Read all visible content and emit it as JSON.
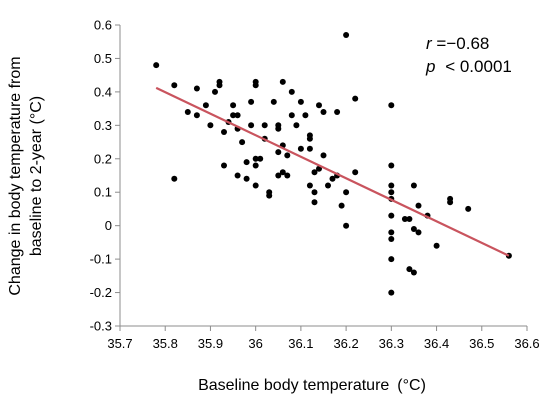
{
  "chart_data": {
    "type": "scatter",
    "title": "",
    "xlabel": "Baseline body temperature (°C)",
    "ylabel_lines": [
      "Change in body temperature from",
      "baseline to 2-year (°C)"
    ],
    "xlim": [
      35.7,
      36.6
    ],
    "ylim": [
      -0.3,
      0.6
    ],
    "xticks": [
      "35.7",
      "35.8",
      "35.9",
      "36",
      "36.1",
      "36.2",
      "36.3",
      "36.4",
      "36.5",
      "36.6"
    ],
    "yticks": [
      "0.6",
      "0.5",
      "0.4",
      "0.3",
      "0.2",
      "0.1",
      "0",
      "-0.1",
      "-0.2",
      "-0.3"
    ],
    "grid": false,
    "colors": {
      "points": "#000000",
      "fit_line": "#c9545e",
      "axis": "#8c8c8c"
    },
    "annotation": {
      "r_var": "r",
      "r_value": "=−0.68",
      "p_var": "p",
      "p_value": "< 0.0001"
    },
    "fit_line": {
      "x": [
        35.78,
        36.56
      ],
      "y": [
        0.412,
        -0.09
      ]
    },
    "points": [
      [
        35.78,
        0.48
      ],
      [
        35.82,
        0.42
      ],
      [
        35.82,
        0.14
      ],
      [
        35.85,
        0.34
      ],
      [
        35.87,
        0.33
      ],
      [
        35.87,
        0.41
      ],
      [
        35.89,
        0.36
      ],
      [
        35.9,
        0.3
      ],
      [
        35.91,
        0.4
      ],
      [
        35.92,
        0.42
      ],
      [
        35.92,
        0.43
      ],
      [
        35.93,
        0.18
      ],
      [
        35.93,
        0.28
      ],
      [
        35.94,
        0.31
      ],
      [
        35.95,
        0.36
      ],
      [
        35.95,
        0.33
      ],
      [
        35.96,
        0.33
      ],
      [
        35.96,
        0.29
      ],
      [
        35.96,
        0.15
      ],
      [
        35.97,
        0.25
      ],
      [
        35.98,
        0.19
      ],
      [
        35.98,
        0.14
      ],
      [
        35.99,
        0.3
      ],
      [
        35.99,
        0.37
      ],
      [
        36.0,
        0.43
      ],
      [
        36.0,
        0.42
      ],
      [
        36.0,
        0.2
      ],
      [
        36.0,
        0.18
      ],
      [
        36.0,
        0.12
      ],
      [
        36.01,
        0.2
      ],
      [
        36.02,
        0.3
      ],
      [
        36.02,
        0.26
      ],
      [
        36.03,
        0.1
      ],
      [
        36.03,
        0.09
      ],
      [
        36.04,
        0.37
      ],
      [
        36.05,
        0.3
      ],
      [
        36.05,
        0.29
      ],
      [
        36.05,
        0.22
      ],
      [
        36.05,
        0.15
      ],
      [
        36.06,
        0.24
      ],
      [
        36.06,
        0.16
      ],
      [
        36.06,
        0.43
      ],
      [
        36.07,
        0.21
      ],
      [
        36.07,
        0.15
      ],
      [
        36.08,
        0.33
      ],
      [
        36.08,
        0.4
      ],
      [
        36.09,
        0.3
      ],
      [
        36.1,
        0.23
      ],
      [
        36.1,
        0.37
      ],
      [
        36.11,
        0.33
      ],
      [
        36.12,
        0.27
      ],
      [
        36.12,
        0.26
      ],
      [
        36.12,
        0.23
      ],
      [
        36.12,
        0.12
      ],
      [
        36.13,
        0.1
      ],
      [
        36.13,
        0.07
      ],
      [
        36.13,
        0.16
      ],
      [
        36.14,
        0.36
      ],
      [
        36.14,
        0.17
      ],
      [
        36.15,
        0.21
      ],
      [
        36.15,
        0.34
      ],
      [
        36.16,
        0.12
      ],
      [
        36.17,
        0.14
      ],
      [
        36.18,
        0.34
      ],
      [
        36.18,
        0.15
      ],
      [
        36.19,
        0.06
      ],
      [
        36.2,
        0.57
      ],
      [
        36.2,
        0.1
      ],
      [
        36.2,
        0.0
      ],
      [
        36.22,
        0.38
      ],
      [
        36.22,
        0.16
      ],
      [
        36.3,
        0.36
      ],
      [
        36.3,
        0.18
      ],
      [
        36.3,
        0.12
      ],
      [
        36.3,
        0.1
      ],
      [
        36.3,
        0.08
      ],
      [
        36.3,
        0.03
      ],
      [
        36.3,
        -0.02
      ],
      [
        36.3,
        -0.04
      ],
      [
        36.3,
        -0.1
      ],
      [
        36.3,
        -0.2
      ],
      [
        36.33,
        0.02
      ],
      [
        36.34,
        0.02
      ],
      [
        36.34,
        -0.13
      ],
      [
        36.35,
        0.12
      ],
      [
        36.35,
        -0.01
      ],
      [
        36.35,
        -0.14
      ],
      [
        36.36,
        0.06
      ],
      [
        36.36,
        -0.02
      ],
      [
        36.38,
        0.03
      ],
      [
        36.4,
        -0.06
      ],
      [
        36.43,
        0.08
      ],
      [
        36.43,
        0.07
      ],
      [
        36.47,
        0.05
      ],
      [
        36.56,
        -0.09
      ]
    ]
  }
}
